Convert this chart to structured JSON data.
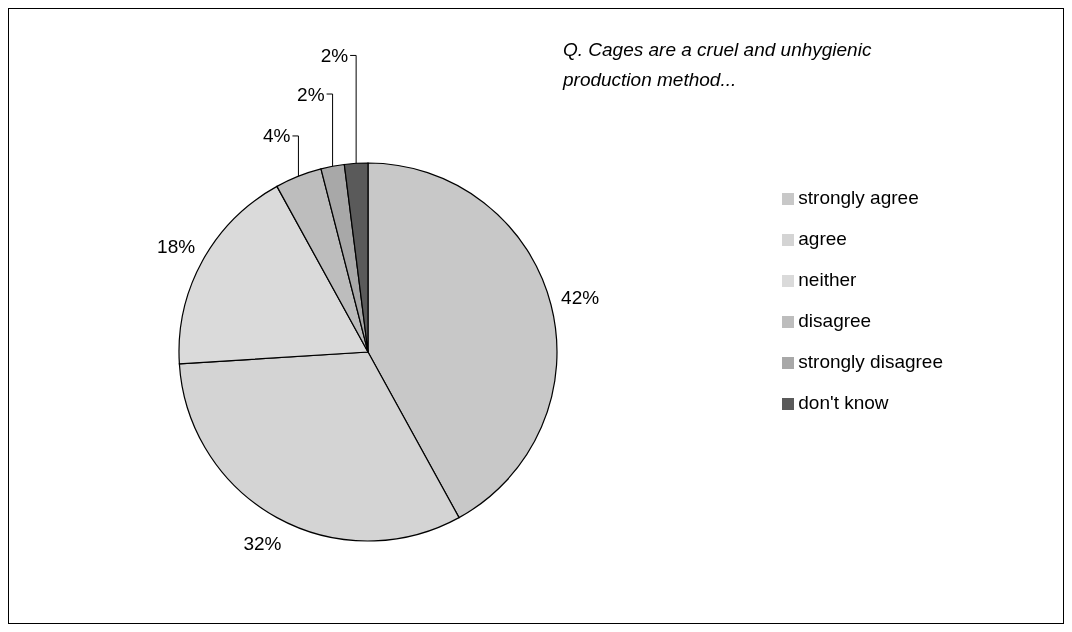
{
  "chart_data": {
    "type": "pie",
    "title": "Q. Cages are a cruel and unhygienic production method...",
    "categories": [
      "strongly agree",
      "agree",
      "neither",
      "disagree",
      "strongly disagree",
      "don't know"
    ],
    "values": [
      42,
      32,
      18,
      4,
      2,
      2
    ],
    "value_labels": [
      "42%",
      "32%",
      "18%",
      "4%",
      "2%",
      "2%"
    ],
    "colors": [
      "#c8c8c8",
      "#d4d4d4",
      "#dadada",
      "#bdbdbd",
      "#a8a8a8",
      "#5a5a5a"
    ],
    "legend": "right"
  }
}
